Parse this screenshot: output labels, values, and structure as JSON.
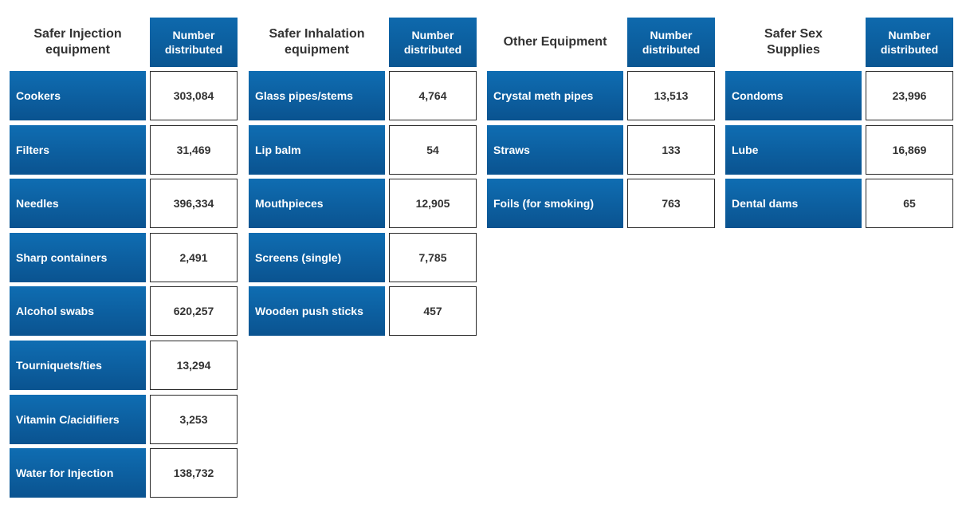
{
  "chart_data": {
    "type": "table",
    "title": "",
    "groups": [
      {
        "name": "Safer Injection\nequipment",
        "column_header": "Number\ndistributed",
        "categories": [
          "Cookers",
          "Filters",
          "Needles",
          "Sharp containers",
          "Alcohol swabs",
          "Tourniquets/ties",
          "Vitamin C/acidifiers",
          "Water for Injection"
        ],
        "values": [
          303084,
          31469,
          396334,
          2491,
          620257,
          13294,
          3253,
          138732
        ],
        "labels": [
          "303,084",
          "31,469",
          "396,334",
          "2,491",
          "620,257",
          "13,294",
          "3,253",
          "138,732"
        ]
      },
      {
        "name": "Safer Inhalation\nequipment",
        "column_header": "Number\ndistributed",
        "categories": [
          "Glass pipes/stems",
          "Lip balm",
          "Mouthpieces",
          "Screens (single)",
          "Wooden push sticks"
        ],
        "values": [
          4764,
          54,
          12905,
          7785,
          457
        ],
        "labels": [
          "4,764",
          "54",
          "12,905",
          "7,785",
          "457"
        ]
      },
      {
        "name": "Other Equipment",
        "column_header": "Number\ndistributed",
        "categories": [
          "Crystal meth pipes",
          "Straws",
          "Foils (for smoking)"
        ],
        "values": [
          13513,
          133,
          763
        ],
        "labels": [
          "13,513",
          "133",
          "763"
        ]
      },
      {
        "name": "Safer Sex\nSupplies",
        "column_header": "Number\ndistributed",
        "categories": [
          "Condoms",
          "Lube",
          "Dental dams"
        ],
        "values": [
          23996,
          16869,
          65
        ],
        "labels": [
          "23,996",
          "16,869",
          "65"
        ]
      }
    ]
  },
  "colors": {
    "header_blue": "#0e69ad",
    "category_blue": "#0f6db2",
    "value_border": "#2b2b2b",
    "title_text": "#333333"
  }
}
